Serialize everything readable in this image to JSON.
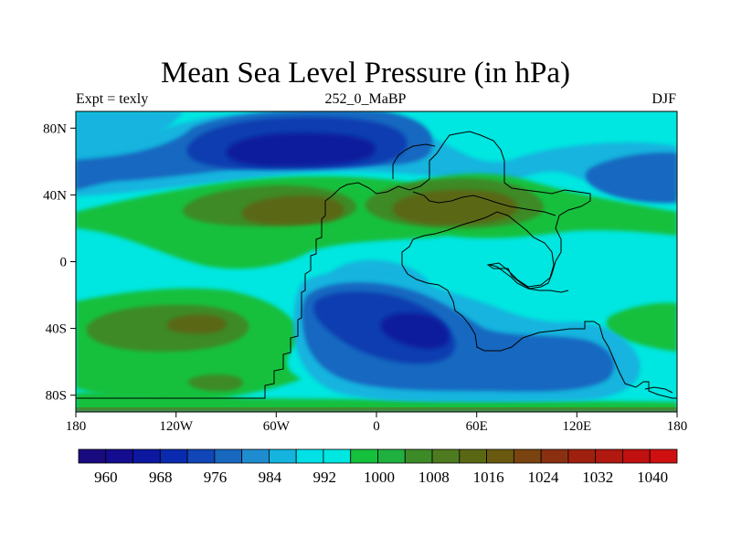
{
  "title": "Mean Sea Level Pressure (in hPa)",
  "subtitle_left": "Expt = texly",
  "subtitle_center": "252_0_MaBP",
  "subtitle_right": "DJF",
  "x_ticks": [
    "180",
    "120W",
    "60W",
    "0",
    "60E",
    "120E",
    "180"
  ],
  "y_ticks": [
    "80N",
    "40N",
    "0",
    "40S",
    "80S"
  ],
  "colorbar": {
    "labels": [
      "960",
      "968",
      "976",
      "984",
      "992",
      "1000",
      "1008",
      "1016",
      "1024",
      "1032",
      "1040"
    ],
    "colors": [
      "#1a0a80",
      "#140d90",
      "#0c18a0",
      "#0a2ab0",
      "#1046b8",
      "#1868c0",
      "#1f8cd0",
      "#14b4de",
      "#00e0e6",
      "#00e6e0",
      "#14c03c",
      "#20b040",
      "#3c8a28",
      "#4e7a20",
      "#5a6814",
      "#6a5a10",
      "#7a4410",
      "#8a3010",
      "#a02010",
      "#b01810",
      "#c01010",
      "#d01010"
    ]
  },
  "palette": {
    "cyan": "#00e6e0",
    "light_blue": "#14b4de",
    "mid_blue": "#1868c0",
    "blue": "#0c3cb0",
    "deep_blue": "#0a1a9c",
    "green": "#14c03c",
    "olive_green": "#3c8a28",
    "olive": "#5a6814",
    "brown": "#6a5a10",
    "dark_red": "#a02010"
  }
}
